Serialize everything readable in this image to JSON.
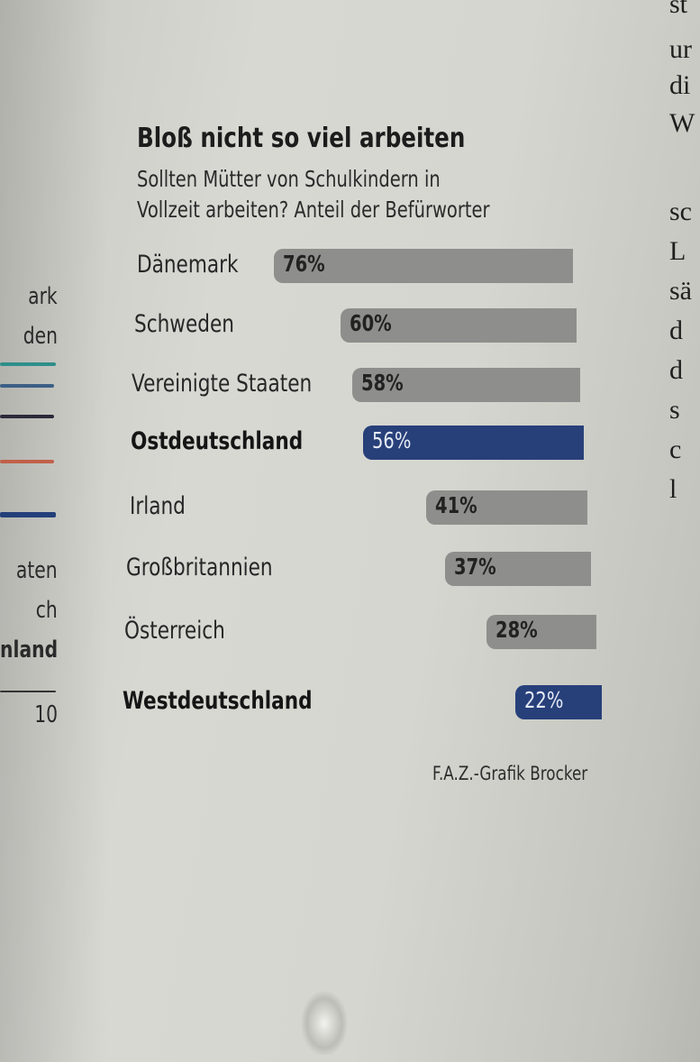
{
  "chart_data": {
    "type": "bar",
    "orientation": "horizontal",
    "title": "Bloß nicht so viel arbeiten",
    "subtitle_lines": [
      "Sollten Mütter von Schulkindern in",
      "Vollzeit arbeiten? Anteil der Befürworter"
    ],
    "categories": [
      "Dänemark",
      "Schweden",
      "Vereinigte Staaten",
      "Ostdeutschland",
      "Irland",
      "Großbritannien",
      "Österreich",
      "Westdeutschland"
    ],
    "values": [
      76,
      60,
      58,
      56,
      41,
      37,
      28,
      22
    ],
    "value_labels": [
      "76%",
      "60%",
      "58%",
      "56%",
      "41%",
      "37%",
      "28%",
      "22%"
    ],
    "highlighted": [
      "Ostdeutschland",
      "Westdeutschland"
    ],
    "source": "F.A.Z.-Grafik Brocker",
    "colors": {
      "bar": "#8e8e8c",
      "highlight": "#27407a"
    }
  },
  "left_margin": {
    "labels": [
      {
        "text": "ark",
        "bold": false
      },
      {
        "text": "den",
        "bold": false
      },
      {
        "text": "aten",
        "bold": false
      },
      {
        "text": "ch",
        "bold": false
      },
      {
        "text": "nland",
        "bold": true
      },
      {
        "text": "10",
        "bold": false
      }
    ],
    "line_colors": [
      "#2f8f8a",
      "#3c5f86",
      "#2a2a3a",
      "#c0604a",
      "#24407a"
    ]
  },
  "right_margin": {
    "glyphs": [
      "st",
      "ur",
      "di",
      "W",
      "sc",
      "L",
      "sä",
      "d",
      "d",
      "s",
      "c",
      "l"
    ]
  }
}
